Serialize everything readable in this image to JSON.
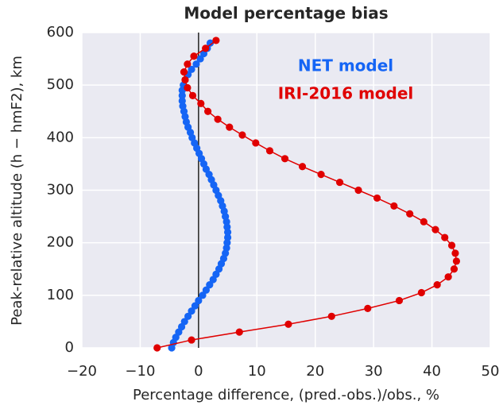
{
  "chart_data": {
    "type": "line",
    "title": "Model percentage bias",
    "x_label": "Percentage difference, (pred.-obs.)/obs., %",
    "y_label": "Peak-relative altitude (h − hmF2), km",
    "annotations": [
      {
        "text": "NET model",
        "color": "#1565f5"
      },
      {
        "text": "IRI-2016 model",
        "color": "#e00000"
      }
    ],
    "xlim": [
      -20,
      50
    ],
    "xticks": [
      {
        "value": -20,
        "label": "−20"
      },
      {
        "value": -10,
        "label": "−10"
      },
      0,
      10,
      20,
      30,
      40,
      50
    ],
    "ylim": [
      0,
      600
    ],
    "yticks": [
      0,
      100,
      200,
      300,
      400,
      500,
      600
    ],
    "reference_x": 0,
    "grid": true,
    "series": [
      {
        "name": "NET model",
        "color": "#1565f5",
        "line": false,
        "y": [
          0,
          10,
          20,
          30,
          40,
          50,
          60,
          70,
          80,
          90,
          100,
          110,
          120,
          130,
          140,
          150,
          160,
          170,
          180,
          190,
          200,
          210,
          220,
          230,
          240,
          250,
          260,
          270,
          280,
          290,
          300,
          310,
          320,
          330,
          340,
          350,
          360,
          370,
          380,
          390,
          400,
          410,
          420,
          430,
          440,
          450,
          460,
          470,
          480,
          490,
          500,
          510,
          520,
          530,
          540,
          550,
          560,
          570,
          580
        ],
        "values": [
          -4.6,
          -4.3,
          -3.9,
          -3.4,
          -2.9,
          -2.4,
          -1.8,
          -1.2,
          -0.6,
          0.0,
          0.7,
          1.3,
          1.9,
          2.5,
          3.0,
          3.5,
          3.9,
          4.3,
          4.6,
          4.8,
          4.9,
          5.0,
          5.0,
          4.9,
          4.8,
          4.6,
          4.4,
          4.1,
          3.8,
          3.4,
          3.0,
          2.6,
          2.2,
          1.8,
          1.3,
          0.9,
          0.5,
          0.1,
          -0.3,
          -0.7,
          -1.1,
          -1.4,
          -1.8,
          -2.1,
          -2.3,
          -2.5,
          -2.7,
          -2.8,
          -2.8,
          -2.8,
          -2.6,
          -2.3,
          -1.8,
          -1.2,
          -0.4,
          0.3,
          0.9,
          1.5,
          2.0
        ]
      },
      {
        "name": "IRI-2016 model",
        "color": "#e00000",
        "line": true,
        "y": [
          0,
          15,
          30,
          45,
          60,
          75,
          90,
          105,
          120,
          135,
          150,
          165,
          180,
          195,
          210,
          225,
          240,
          255,
          270,
          285,
          300,
          315,
          330,
          345,
          360,
          375,
          390,
          405,
          420,
          435,
          450,
          465,
          480,
          495,
          510,
          525,
          540,
          555,
          570,
          585
        ],
        "values": [
          -7.1,
          -1.2,
          7.0,
          15.4,
          22.8,
          29.0,
          34.4,
          38.2,
          40.9,
          42.8,
          43.8,
          44.2,
          44.0,
          43.4,
          42.2,
          40.6,
          38.6,
          36.2,
          33.5,
          30.6,
          27.4,
          24.2,
          21.0,
          17.8,
          14.8,
          12.2,
          9.8,
          7.5,
          5.3,
          3.3,
          1.6,
          0.4,
          -1.0,
          -1.9,
          -2.3,
          -2.5,
          -1.9,
          -0.8,
          1.2,
          3.0
        ]
      }
    ]
  }
}
